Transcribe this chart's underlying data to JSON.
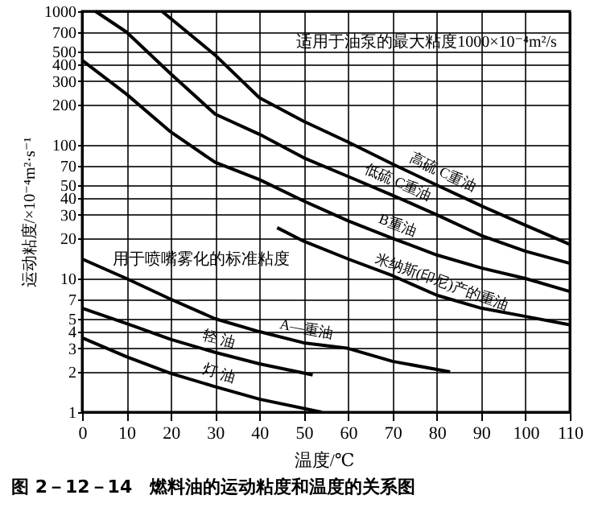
{
  "chart_data": {
    "type": "line",
    "title": "图 2－12－14　燃料油的运动粘度和温度的关系图",
    "xlabel": "温度/℃",
    "ylabel": "运动粘度/×10⁻⁴m²·s⁻¹",
    "log": "y",
    "grid": true,
    "line_style": "solid",
    "marker": "none",
    "xlim": [
      0,
      110
    ],
    "xticks": [
      0,
      10,
      20,
      30,
      40,
      50,
      60,
      70,
      80,
      90,
      100,
      110
    ],
    "ylim": [
      1,
      1000
    ],
    "yticks": [
      1,
      2,
      3,
      4,
      5,
      7,
      10,
      20,
      30,
      40,
      50,
      70,
      100,
      200,
      300,
      400,
      500,
      700,
      1000
    ],
    "series": [
      {
        "name": "高硫 C重油",
        "color": "#000000",
        "x": [
          18,
          30,
          40,
          50,
          60,
          70,
          80,
          90,
          100,
          110
        ],
        "values": [
          1000,
          470,
          225,
          150,
          105,
          72,
          50,
          35,
          25,
          18
        ]
      },
      {
        "name": "低硫 C重油",
        "color": "#000000",
        "x": [
          3,
          10,
          20,
          30,
          40,
          50,
          60,
          70,
          80,
          90,
          100,
          110
        ],
        "values": [
          1000,
          700,
          340,
          170,
          120,
          80,
          58,
          42,
          30,
          21,
          16,
          13
        ]
      },
      {
        "name": "B重油",
        "color": "#000000",
        "x": [
          0,
          10,
          20,
          30,
          40,
          50,
          60,
          70,
          80,
          90,
          100,
          110
        ],
        "values": [
          430,
          240,
          125,
          74,
          55,
          38,
          27,
          20,
          15,
          12,
          10,
          8
        ]
      },
      {
        "name": "米纳斯(印尼)产的重油",
        "color": "#000000",
        "x": [
          44,
          50,
          60,
          70,
          80,
          90,
          100,
          110
        ],
        "values": [
          24,
          19,
          14,
          10.5,
          7.5,
          6,
          5.2,
          4.5
        ]
      },
      {
        "name": "A—重油",
        "color": "#000000",
        "x": [
          0,
          10,
          20,
          30,
          40,
          50,
          60,
          70,
          83
        ],
        "values": [
          14,
          10,
          7,
          5,
          4,
          3.3,
          3,
          2.4,
          2
        ]
      },
      {
        "name": "轻 油",
        "color": "#000000",
        "x": [
          0,
          10,
          20,
          30,
          40,
          52
        ],
        "values": [
          6,
          4.6,
          3.5,
          2.8,
          2.3,
          1.9
        ]
      },
      {
        "name": "灯 油",
        "color": "#000000",
        "x": [
          0,
          10,
          20,
          30,
          40,
          54
        ],
        "values": [
          3.6,
          2.6,
          1.95,
          1.55,
          1.25,
          1
        ]
      }
    ],
    "annotations": [
      "适用于油泵的最大粘度1000×10⁻⁴m²/s",
      "用于喷嘴雾化的标准粘度"
    ]
  }
}
